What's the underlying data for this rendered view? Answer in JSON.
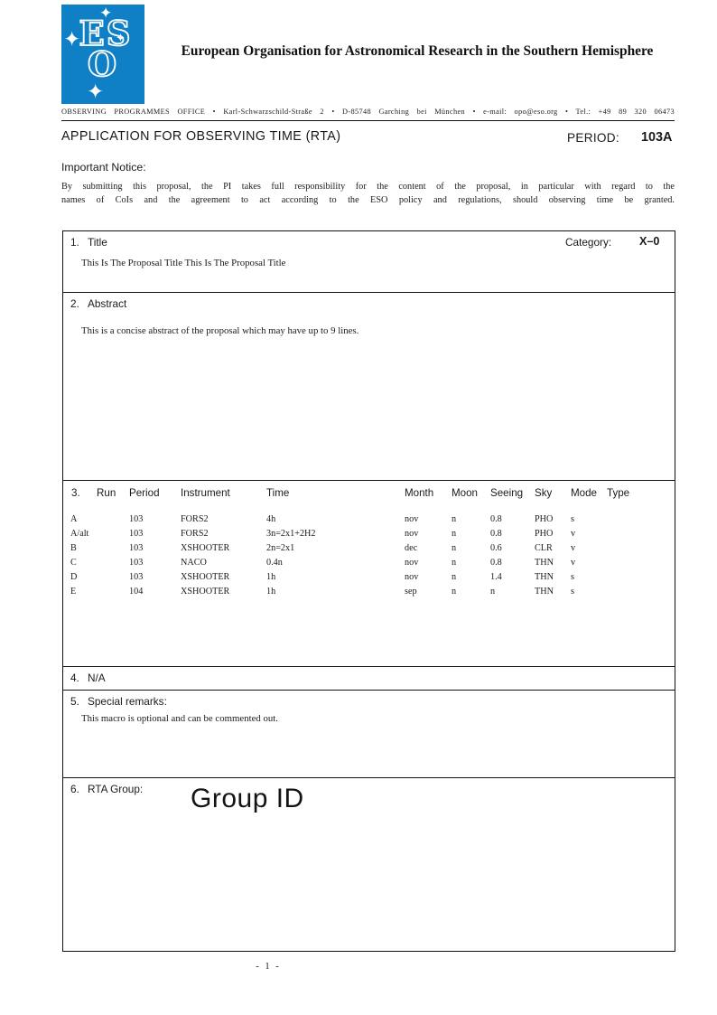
{
  "page": {
    "footer": "- 1 -"
  },
  "header": {
    "logo": {
      "letters_top": "ES",
      "letter_bottom": "O",
      "star_glyph": "✦",
      "blue": "#0f80c5"
    },
    "org_name": "European Organisation for Astronomical Research in the Southern Hemisphere",
    "address": "OBSERVING PROGRAMMES OFFICE • Karl-Schwarzschild-Straße 2 • D-85748 Garching bei München • e-mail: opo@eso.org • Tel.: +49 89 320 06473",
    "app_title": "APPLICATION FOR OBSERVING TIME (RTA)",
    "period_label": "PERIOD:",
    "period_value": "103A",
    "notice_label": "Important Notice:",
    "notice_line1": "By submitting this proposal, the PI takes full responsibility for the content of the proposal, in particular with regard to the",
    "notice_line2": "names of CoIs and the agreement to act according to the ESO policy and regulations, should observing time be granted."
  },
  "sections": {
    "title": {
      "num": "1.",
      "label": "Title",
      "category_label": "Category:",
      "category_value": "X–0",
      "content": "This Is The Proposal Title This Is The Proposal Title"
    },
    "abstract": {
      "num": "2.",
      "label": "Abstract",
      "content": "This is a concise abstract of the proposal which may have up to 9 lines."
    },
    "runs": {
      "num": "3.",
      "headers": [
        "Run",
        "Period",
        "Instrument",
        "Time",
        "Month",
        "Moon",
        "Seeing",
        "Sky",
        "Mode",
        "Type"
      ],
      "rows": [
        [
          "A",
          "103",
          "FORS2",
          "4h",
          "nov",
          "n",
          "0.8",
          "PHO",
          "s",
          ""
        ],
        [
          "A/alt",
          "103",
          "FORS2",
          "3n=2x1+2H2",
          "nov",
          "n",
          "0.8",
          "PHO",
          "v",
          ""
        ],
        [
          "B",
          "103",
          "XSHOOTER",
          "2n=2x1",
          "dec",
          "n",
          "0.6",
          "CLR",
          "v",
          ""
        ],
        [
          "C",
          "103",
          "NACO",
          "0.4n",
          "nov",
          "n",
          "0.8",
          "THN",
          "v",
          ""
        ],
        [
          "D",
          "103",
          "XSHOOTER",
          "1h",
          "nov",
          "n",
          "1.4",
          "THN",
          "s",
          ""
        ],
        [
          "E",
          "104",
          "XSHOOTER",
          "1h",
          "sep",
          "n",
          "n",
          "THN",
          "s",
          ""
        ]
      ]
    },
    "na": {
      "num": "4.",
      "label": "N/A"
    },
    "remarks": {
      "num": "5.",
      "label": "Special remarks:",
      "content": "This macro is optional and can be commented out."
    },
    "group": {
      "num": "6.",
      "label": "RTA Group:",
      "content": "Group ID"
    }
  }
}
